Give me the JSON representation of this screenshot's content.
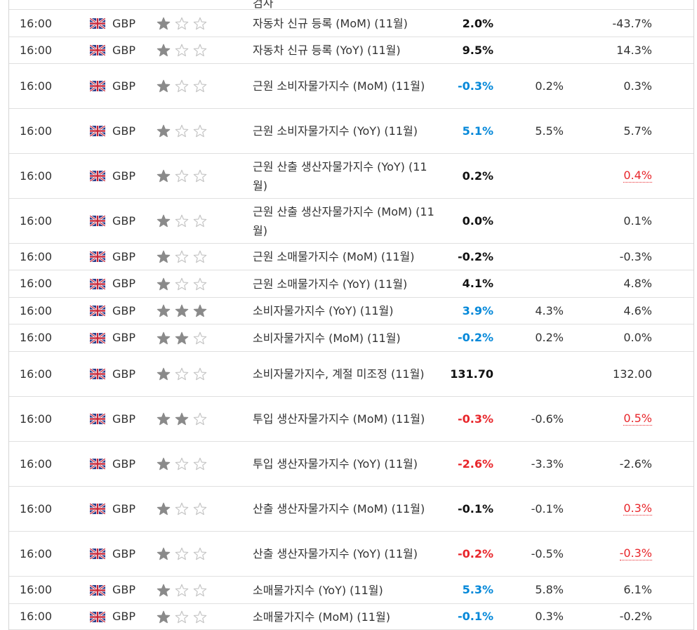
{
  "top_cut_text": "검사",
  "rows": [
    {
      "time": "16:00",
      "currency": "GBP",
      "importance": 1,
      "event": "자동차 신규 등록 (MoM) (11월)",
      "actual": "2.0%",
      "actual_class": "neu",
      "forecast": "",
      "previous": "-43.7%",
      "previous_revised": false
    },
    {
      "time": "16:00",
      "currency": "GBP",
      "importance": 1,
      "event": "자동차 신규 등록 (YoY) (11월)",
      "actual": "9.5%",
      "actual_class": "neu",
      "forecast": "",
      "previous": "14.3%",
      "previous_revised": false
    },
    {
      "time": "16:00",
      "currency": "GBP",
      "importance": 1,
      "event": "근원 소비자물가지수 (MoM) (11월)",
      "actual": "-0.3%",
      "actual_class": "pos",
      "forecast": "0.2%",
      "previous": "0.3%",
      "previous_revised": false
    },
    {
      "time": "16:00",
      "currency": "GBP",
      "importance": 1,
      "event": "근원 소비자물가지수 (YoY) (11월)",
      "actual": "5.1%",
      "actual_class": "pos",
      "forecast": "5.5%",
      "previous": "5.7%",
      "previous_revised": false
    },
    {
      "time": "16:00",
      "currency": "GBP",
      "importance": 1,
      "event": "근원 산출 생산자물가지수 (YoY) (11월)",
      "actual": "0.2%",
      "actual_class": "neu",
      "forecast": "",
      "previous": "0.4%",
      "previous_revised": true
    },
    {
      "time": "16:00",
      "currency": "GBP",
      "importance": 1,
      "event": "근원 산출 생산자물가지수 (MoM) (11월)",
      "actual": "0.0%",
      "actual_class": "neu",
      "forecast": "",
      "previous": "0.1%",
      "previous_revised": false
    },
    {
      "time": "16:00",
      "currency": "GBP",
      "importance": 1,
      "event": "근원 소매물가지수 (MoM) (11월)",
      "actual": "-0.2%",
      "actual_class": "neu",
      "forecast": "",
      "previous": "-0.3%",
      "previous_revised": false
    },
    {
      "time": "16:00",
      "currency": "GBP",
      "importance": 1,
      "event": "근원 소매물가지수 (YoY) (11월)",
      "actual": "4.1%",
      "actual_class": "neu",
      "forecast": "",
      "previous": "4.8%",
      "previous_revised": false
    },
    {
      "time": "16:00",
      "currency": "GBP",
      "importance": 3,
      "event": "소비자물가지수 (YoY) (11월)",
      "actual": "3.9%",
      "actual_class": "pos",
      "forecast": "4.3%",
      "previous": "4.6%",
      "previous_revised": false
    },
    {
      "time": "16:00",
      "currency": "GBP",
      "importance": 2,
      "event": "소비자물가지수 (MoM) (11월)",
      "actual": "-0.2%",
      "actual_class": "pos",
      "forecast": "0.2%",
      "previous": "0.0%",
      "previous_revised": false
    },
    {
      "time": "16:00",
      "currency": "GBP",
      "importance": 1,
      "event": "소비자물가지수, 계절 미조정 (11월)",
      "actual": "131.70",
      "actual_class": "neu",
      "forecast": "",
      "previous": "132.00",
      "previous_revised": false
    },
    {
      "time": "16:00",
      "currency": "GBP",
      "importance": 2,
      "event": "투입 생산자물가지수 (MoM) (11월)",
      "actual": "-0.3%",
      "actual_class": "neg",
      "forecast": "-0.6%",
      "previous": "0.5%",
      "previous_revised": true
    },
    {
      "time": "16:00",
      "currency": "GBP",
      "importance": 1,
      "event": "투입 생산자물가지수 (YoY) (11월)",
      "actual": "-2.6%",
      "actual_class": "neg",
      "forecast": "-3.3%",
      "previous": "-2.6%",
      "previous_revised": false
    },
    {
      "time": "16:00",
      "currency": "GBP",
      "importance": 1,
      "event": "산출 생산자물가지수 (MoM) (11월)",
      "actual": "-0.1%",
      "actual_class": "neu",
      "forecast": "-0.1%",
      "previous": "0.3%",
      "previous_revised": true
    },
    {
      "time": "16:00",
      "currency": "GBP",
      "importance": 1,
      "event": "산출 생산자물가지수 (YoY) (11월)",
      "actual": "-0.2%",
      "actual_class": "neg",
      "forecast": "-0.5%",
      "previous": "-0.3%",
      "previous_revised": true
    },
    {
      "time": "16:00",
      "currency": "GBP",
      "importance": 1,
      "event": "소매물가지수 (YoY) (11월)",
      "actual": "5.3%",
      "actual_class": "pos",
      "forecast": "5.8%",
      "previous": "6.1%",
      "previous_revised": false
    },
    {
      "time": "16:00",
      "currency": "GBP",
      "importance": 1,
      "event": "소매물가지수 (MoM) (11월)",
      "actual": "-0.1%",
      "actual_class": "pos",
      "forecast": "0.3%",
      "previous": "-0.2%",
      "previous_revised": false
    }
  ],
  "colors": {
    "actual_positive": "#0488d9",
    "actual_negative": "#e8262b",
    "actual_neutral": "#111111",
    "previous_revised": "#e8262b",
    "star_filled": "#8a8a8a",
    "star_empty": "#c4c4c4",
    "row_border": "#e0e0e0"
  },
  "icons": {
    "flag": "uk-flag-icon",
    "star_filled": "star-filled-icon",
    "star_empty": "star-empty-icon"
  }
}
